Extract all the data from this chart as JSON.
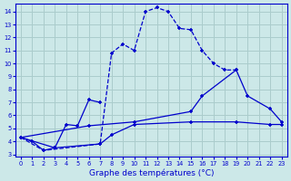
{
  "xlabel": "Graphe des températures (°C)",
  "bg": "#cce8e8",
  "grid_color": "#aacccc",
  "lc": "#0000cc",
  "ylim_min": 2.8,
  "ylim_max": 14.6,
  "xlim_min": -0.5,
  "xlim_max": 23.5,
  "yticks": [
    3,
    4,
    5,
    6,
    7,
    8,
    9,
    10,
    11,
    12,
    13,
    14
  ],
  "xticks": [
    0,
    1,
    2,
    3,
    4,
    5,
    6,
    7,
    8,
    9,
    10,
    11,
    12,
    13,
    14,
    15,
    16,
    17,
    18,
    19,
    20,
    21,
    22,
    23
  ],
  "curve1": {
    "x": [
      0,
      1,
      2,
      3,
      4,
      5,
      6,
      7
    ],
    "y": [
      4.3,
      4.0,
      3.3,
      3.5,
      5.3,
      5.2,
      7.2,
      7.0
    ],
    "dashed": false
  },
  "curve2": {
    "x": [
      0,
      2,
      7,
      8,
      9,
      10,
      11,
      12,
      13,
      14,
      15,
      16,
      17,
      18,
      19
    ],
    "y": [
      4.3,
      3.3,
      3.8,
      10.8,
      11.5,
      11.0,
      14.0,
      14.3,
      14.0,
      12.7,
      12.6,
      11.0,
      10.0,
      9.5,
      9.5
    ],
    "dashed": true
  },
  "curve3": {
    "x": [
      0,
      6,
      10,
      15,
      16,
      19,
      20,
      22,
      23
    ],
    "y": [
      4.3,
      5.2,
      5.5,
      6.3,
      7.5,
      9.5,
      7.5,
      6.5,
      5.5
    ],
    "dashed": false
  },
  "curve4": {
    "x": [
      0,
      3,
      7,
      8,
      10,
      15,
      19,
      22,
      23
    ],
    "y": [
      4.3,
      3.5,
      3.8,
      4.5,
      5.3,
      5.5,
      5.5,
      5.3,
      5.3
    ],
    "dashed": false
  }
}
